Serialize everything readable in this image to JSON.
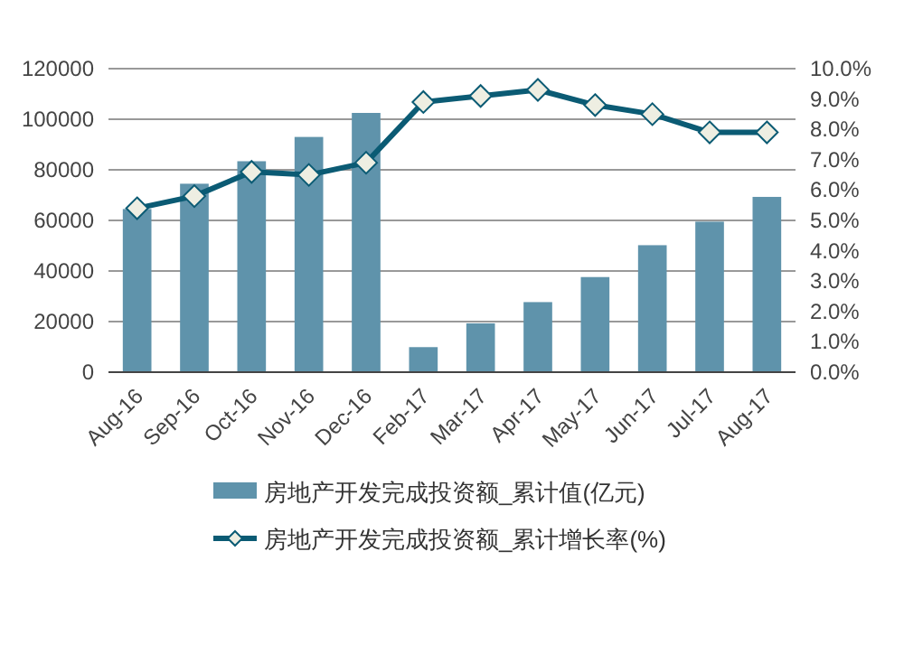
{
  "chart_data": {
    "type": "bar",
    "categories": [
      "Aug-16",
      "Sep-16",
      "Oct-16",
      "Nov-16",
      "Dec-16",
      "Feb-17",
      "Mar-17",
      "Apr-17",
      "May-17",
      "Jun-17",
      "Jul-17",
      "Aug-17"
    ],
    "series": [
      {
        "name": "房地产开发完成投资额_累计值(亿元)",
        "color": "#5f93ab",
        "values": [
          64500,
          74500,
          83400,
          93000,
          102500,
          9900,
          19300,
          27700,
          37600,
          50200,
          59500,
          69300
        ]
      },
      {
        "name": "房地产开发完成投资额_累计增长率(%)",
        "type": "line",
        "axis": "y2",
        "color": "#0b5b74",
        "marker": "diamond",
        "values": [
          5.4,
          5.8,
          6.6,
          6.5,
          6.9,
          8.9,
          9.1,
          9.3,
          8.8,
          8.5,
          7.9,
          7.9
        ]
      }
    ],
    "ylim": [
      0,
      120000
    ],
    "yticks": [
      0,
      20000,
      40000,
      60000,
      80000,
      100000,
      120000
    ],
    "y2lim": [
      0,
      10
    ],
    "y2ticks": [
      {
        "value": 0,
        "label": "0.0%"
      },
      {
        "value": 1,
        "label": "1.0%"
      },
      {
        "value": 2,
        "label": "2.0%"
      },
      {
        "value": 3,
        "label": "3.0%"
      },
      {
        "value": 4,
        "label": "4.0%"
      },
      {
        "value": 5,
        "label": "5.0%"
      },
      {
        "value": 6,
        "label": "6.0%"
      },
      {
        "value": 7,
        "label": "7.0%"
      },
      {
        "value": 8,
        "label": "8.0%"
      },
      {
        "value": 9,
        "label": "9.0%"
      },
      {
        "value": 10,
        "label": "10.0%"
      }
    ],
    "grid": "y",
    "legend": "bottom"
  }
}
